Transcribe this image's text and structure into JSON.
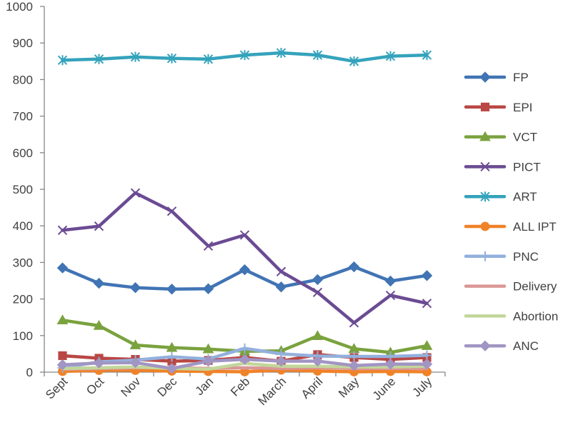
{
  "chart_data": {
    "type": "line",
    "categories": [
      "Sept",
      "Oct",
      "Nov",
      "Dec",
      "Jan",
      "Feb",
      "March",
      "April",
      "May",
      "June",
      "July"
    ],
    "ylim": [
      0,
      1000
    ],
    "yticks": [
      0,
      100,
      200,
      300,
      400,
      500,
      600,
      700,
      800,
      900,
      1000
    ],
    "ytick_labels": [
      "0",
      "100",
      "200",
      "300",
      "400",
      "500",
      "600",
      "700",
      "800",
      "900",
      "1000"
    ],
    "grid": false,
    "legend_position": "right",
    "series": [
      {
        "name": "FP",
        "color": "#4174b4",
        "marker": "diamond",
        "values": [
          285,
          243,
          231,
          227,
          228,
          280,
          233,
          253,
          288,
          249,
          264
        ]
      },
      {
        "name": "EPI",
        "color": "#b94744",
        "marker": "square",
        "values": [
          45,
          38,
          35,
          30,
          32,
          40,
          30,
          48,
          40,
          35,
          40
        ]
      },
      {
        "name": "VCT",
        "color": "#7aa23e",
        "marker": "triangle",
        "values": [
          142,
          127,
          74,
          67,
          63,
          57,
          58,
          99,
          64,
          54,
          72
        ]
      },
      {
        "name": "PICT",
        "color": "#6b4b93",
        "marker": "x",
        "values": [
          388,
          399,
          490,
          440,
          345,
          375,
          275,
          218,
          135,
          210,
          188
        ]
      },
      {
        "name": "ART",
        "color": "#34a3bc",
        "marker": "star",
        "values": [
          853,
          856,
          862,
          858,
          856,
          867,
          873,
          867,
          850,
          864,
          867
        ]
      },
      {
        "name": "ALL IPT",
        "color": "#f08228",
        "marker": "circle",
        "values": [
          2,
          5,
          5,
          3,
          2,
          1,
          6,
          3,
          1,
          2,
          1
        ]
      },
      {
        "name": "PNC",
        "color": "#93b0dd",
        "marker": "plus",
        "values": [
          12,
          28,
          33,
          42,
          36,
          65,
          50,
          44,
          43,
          43,
          46
        ]
      },
      {
        "name": "Delivery",
        "color": "#d99795",
        "marker": "none",
        "values": [
          8,
          10,
          12,
          12,
          10,
          12,
          10,
          12,
          10,
          10,
          10
        ]
      },
      {
        "name": "Abortion",
        "color": "#c3d69b",
        "marker": "none",
        "values": [
          10,
          12,
          14,
          10,
          8,
          24,
          16,
          16,
          14,
          14,
          16
        ]
      },
      {
        "name": "ANC",
        "color": "#a195c3",
        "marker": "diamond",
        "values": [
          20,
          25,
          26,
          10,
          30,
          35,
          30,
          30,
          18,
          22,
          22
        ]
      }
    ]
  }
}
